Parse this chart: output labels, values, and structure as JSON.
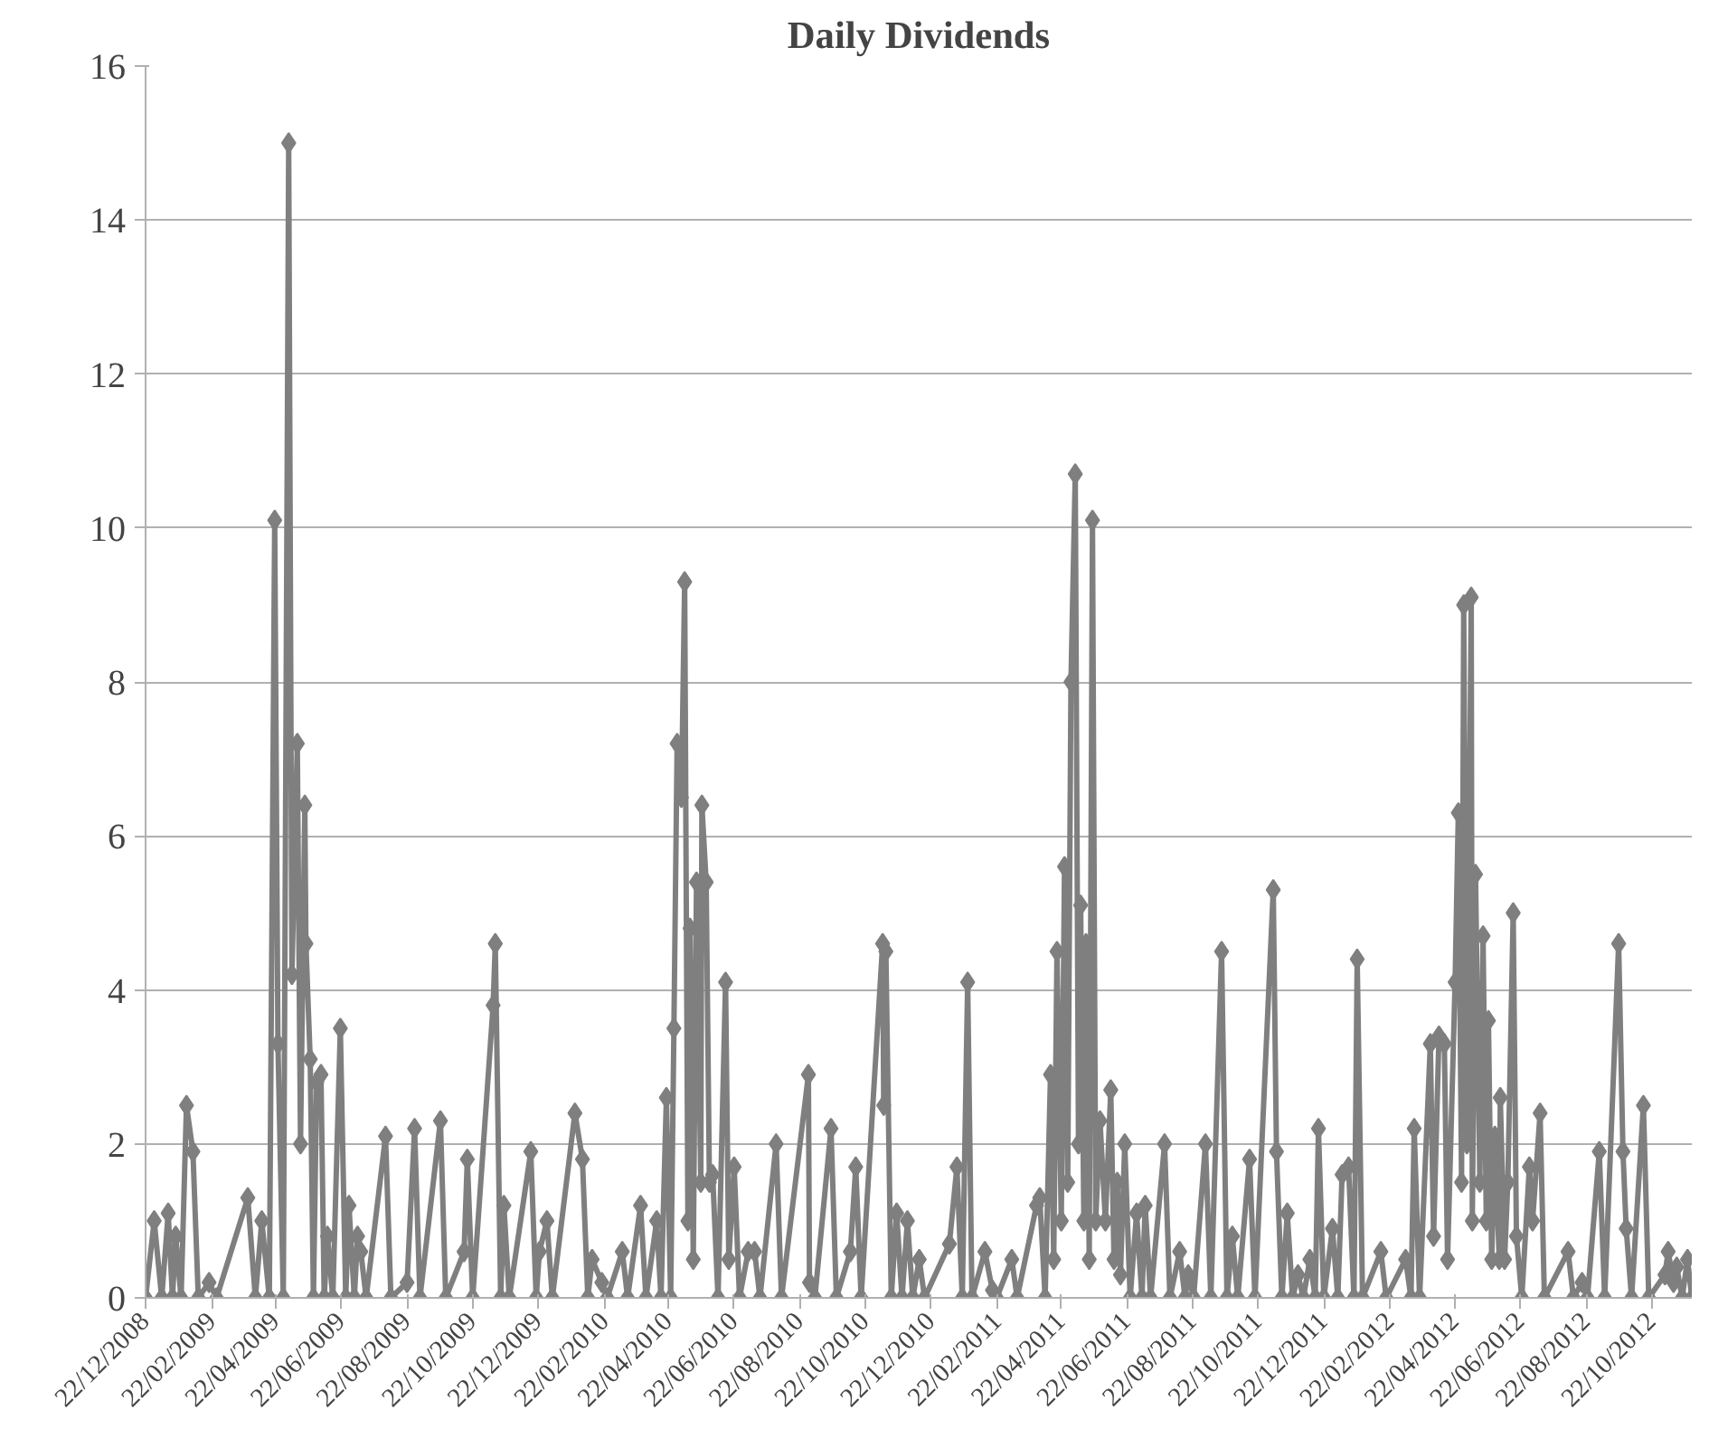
{
  "chart_data": {
    "type": "line",
    "title": "Daily Dividends",
    "color": "#7f7f80",
    "marker": "diamond",
    "line_style": "solid",
    "grid": "y",
    "xlim": [
      "2008-12-22",
      "2012-11-28"
    ],
    "ylim": [
      0,
      16
    ],
    "yticks": [
      0,
      2,
      4,
      6,
      8,
      10,
      12,
      14,
      16
    ],
    "xticks": [
      {
        "value": "2008-12-22",
        "label": "22/12/2008"
      },
      {
        "value": "2009-02-22",
        "label": "22/02/2009"
      },
      {
        "value": "2009-04-22",
        "label": "22/04/2009"
      },
      {
        "value": "2009-06-22",
        "label": "22/06/2009"
      },
      {
        "value": "2009-08-22",
        "label": "22/08/2009"
      },
      {
        "value": "2009-10-22",
        "label": "22/10/2009"
      },
      {
        "value": "2009-12-22",
        "label": "22/12/2009"
      },
      {
        "value": "2010-02-22",
        "label": "22/02/2010"
      },
      {
        "value": "2010-04-22",
        "label": "22/04/2010"
      },
      {
        "value": "2010-06-22",
        "label": "22/06/2010"
      },
      {
        "value": "2010-08-22",
        "label": "22/08/2010"
      },
      {
        "value": "2010-10-22",
        "label": "22/10/2010"
      },
      {
        "value": "2010-12-22",
        "label": "22/12/2010"
      },
      {
        "value": "2011-02-22",
        "label": "22/02/2011"
      },
      {
        "value": "2011-04-22",
        "label": "22/04/2011"
      },
      {
        "value": "2011-06-22",
        "label": "22/06/2011"
      },
      {
        "value": "2011-08-22",
        "label": "22/08/2011"
      },
      {
        "value": "2011-10-22",
        "label": "22/10/2011"
      },
      {
        "value": "2011-12-22",
        "label": "22/12/2011"
      },
      {
        "value": "2012-02-22",
        "label": "22/02/2012"
      },
      {
        "value": "2012-04-22",
        "label": "22/04/2012"
      },
      {
        "value": "2012-06-22",
        "label": "22/06/2012"
      },
      {
        "value": "2012-08-22",
        "label": "22/08/2012"
      },
      {
        "value": "2012-10-22",
        "label": "22/10/2012"
      }
    ],
    "x": [
      "2008-12-22",
      "2008-12-30",
      "2009-01-06",
      "2009-01-12",
      "2009-01-16",
      "2009-01-19",
      "2009-01-24",
      "2009-01-29",
      "2009-02-04",
      "2009-02-09",
      "2009-02-19",
      "2009-02-26",
      "2009-03-27",
      "2009-04-03",
      "2009-04-09",
      "2009-04-16",
      "2009-04-21",
      "2009-04-24",
      "2009-04-29",
      "2009-05-04",
      "2009-05-07",
      "2009-05-12",
      "2009-05-15",
      "2009-05-19",
      "2009-05-20",
      "2009-05-24",
      "2009-05-27",
      "2009-05-30",
      "2009-06-03",
      "2009-06-06",
      "2009-06-09",
      "2009-06-14",
      "2009-06-21",
      "2009-06-26",
      "2009-06-29",
      "2009-07-04",
      "2009-07-07",
      "2009-07-10",
      "2009-07-15",
      "2009-08-02",
      "2009-08-07",
      "2009-08-22",
      "2009-08-29",
      "2009-09-03",
      "2009-09-22",
      "2009-09-27",
      "2009-10-14",
      "2009-10-17",
      "2009-10-22",
      "2009-11-10",
      "2009-11-12",
      "2009-11-17",
      "2009-11-20",
      "2009-11-25",
      "2009-12-15",
      "2009-12-20",
      "2009-12-23",
      "2009-12-30",
      "2010-01-04",
      "2010-01-25",
      "2010-02-01",
      "2010-02-06",
      "2010-02-10",
      "2010-02-19",
      "2010-02-24",
      "2010-03-10",
      "2010-03-15",
      "2010-03-27",
      "2010-04-01",
      "2010-04-11",
      "2010-04-15",
      "2010-04-20",
      "2010-04-24",
      "2010-04-27",
      "2010-04-30",
      "2010-05-04",
      "2010-05-07",
      "2010-05-10",
      "2010-05-12",
      "2010-05-15",
      "2010-05-18",
      "2010-05-22",
      "2010-05-23",
      "2010-05-27",
      "2010-05-30",
      "2010-06-02",
      "2010-06-07",
      "2010-06-14",
      "2010-06-17",
      "2010-06-22",
      "2010-06-27",
      "2010-07-05",
      "2010-07-11",
      "2010-07-16",
      "2010-07-31",
      "2010-08-05",
      "2010-08-30",
      "2010-08-31",
      "2010-09-05",
      "2010-09-20",
      "2010-09-25",
      "2010-10-08",
      "2010-10-13",
      "2010-10-18",
      "2010-11-07",
      "2010-11-08",
      "2010-11-10",
      "2010-11-15",
      "2010-11-20",
      "2010-11-25",
      "2010-11-30",
      "2010-12-05",
      "2010-12-11",
      "2010-12-16",
      "2011-01-08",
      "2011-01-15",
      "2011-01-20",
      "2011-01-25",
      "2011-01-29",
      "2011-02-10",
      "2011-02-17",
      "2011-02-21",
      "2011-03-07",
      "2011-03-12",
      "2011-03-30",
      "2011-04-02",
      "2011-04-07",
      "2011-04-12",
      "2011-04-15",
      "2011-04-18",
      "2011-04-22",
      "2011-04-25",
      "2011-04-28",
      "2011-05-01",
      "2011-05-05",
      "2011-05-08",
      "2011-05-10",
      "2011-05-13",
      "2011-05-15",
      "2011-05-18",
      "2011-05-21",
      "2011-05-24",
      "2011-05-28",
      "2011-06-02",
      "2011-06-07",
      "2011-06-10",
      "2011-06-13",
      "2011-06-16",
      "2011-06-20",
      "2011-06-25",
      "2011-07-01",
      "2011-07-06",
      "2011-07-09",
      "2011-07-14",
      "2011-07-27",
      "2011-08-01",
      "2011-08-10",
      "2011-08-15",
      "2011-08-18",
      "2011-08-23",
      "2011-09-03",
      "2011-09-08",
      "2011-09-18",
      "2011-09-23",
      "2011-09-28",
      "2011-10-03",
      "2011-10-14",
      "2011-10-19",
      "2011-11-05",
      "2011-11-08",
      "2011-11-13",
      "2011-11-18",
      "2011-11-23",
      "2011-11-28",
      "2011-12-03",
      "2011-12-09",
      "2011-12-14",
      "2011-12-17",
      "2011-12-22",
      "2011-12-30",
      "2012-01-04",
      "2012-01-08",
      "2012-01-14",
      "2012-01-19",
      "2012-01-22",
      "2012-01-27",
      "2012-02-13",
      "2012-02-18",
      "2012-03-07",
      "2012-03-12",
      "2012-03-15",
      "2012-03-20",
      "2012-03-30",
      "2012-04-02",
      "2012-04-07",
      "2012-04-12",
      "2012-04-15",
      "2012-04-22",
      "2012-04-25",
      "2012-04-28",
      "2012-04-30",
      "2012-05-03",
      "2012-05-07",
      "2012-05-08",
      "2012-05-11",
      "2012-05-15",
      "2012-05-18",
      "2012-05-21",
      "2012-05-23",
      "2012-05-26",
      "2012-05-29",
      "2012-06-02",
      "2012-06-03",
      "2012-06-07",
      "2012-06-10",
      "2012-06-15",
      "2012-06-18",
      "2012-06-23",
      "2012-06-30",
      "2012-07-03",
      "2012-07-10",
      "2012-07-14",
      "2012-08-05",
      "2012-08-10",
      "2012-08-18",
      "2012-08-23",
      "2012-09-03",
      "2012-09-08",
      "2012-09-21",
      "2012-09-25",
      "2012-09-28",
      "2012-10-03",
      "2012-10-14",
      "2012-10-19",
      "2012-11-03",
      "2012-11-06",
      "2012-11-11",
      "2012-11-14",
      "2012-11-19",
      "2012-11-24",
      "2012-11-28"
    ],
    "values": [
      0,
      1.0,
      0,
      1.1,
      0,
      0.8,
      0,
      2.5,
      1.9,
      0,
      0.2,
      0,
      1.3,
      0,
      1.0,
      0,
      10.1,
      3.3,
      0,
      15.0,
      4.2,
      7.2,
      2.0,
      6.4,
      4.6,
      3.1,
      0,
      2.8,
      2.9,
      0,
      0.8,
      0,
      3.5,
      0,
      1.2,
      0,
      0.8,
      0.6,
      0,
      2.1,
      0,
      0.2,
      2.2,
      0,
      2.3,
      0,
      0.6,
      1.8,
      0,
      3.8,
      4.6,
      0,
      1.2,
      0,
      1.9,
      0,
      0.6,
      1.0,
      0,
      2.4,
      1.8,
      0,
      0.5,
      0.2,
      0,
      0.6,
      0,
      1.2,
      0,
      1.0,
      0,
      2.6,
      0,
      3.5,
      7.2,
      6.5,
      9.3,
      1.0,
      4.8,
      0.5,
      5.4,
      1.5,
      6.4,
      5.4,
      1.5,
      1.6,
      0,
      4.1,
      0.5,
      1.7,
      0,
      0.6,
      0.6,
      0,
      2.0,
      0,
      2.9,
      0.2,
      0,
      2.2,
      0,
      0.6,
      1.7,
      0,
      4.6,
      2.5,
      4.5,
      0,
      1.1,
      0,
      1.0,
      0,
      0.5,
      0,
      0.7,
      1.7,
      0,
      4.1,
      0,
      0.6,
      0.1,
      0,
      0.5,
      0,
      1.2,
      1.3,
      0,
      2.9,
      0.5,
      4.5,
      1.0,
      5.6,
      1.5,
      8.0,
      10.7,
      2.0,
      5.1,
      1.0,
      4.6,
      0.5,
      10.1,
      1.0,
      2.3,
      1.0,
      2.7,
      0.5,
      1.5,
      0.3,
      2.0,
      0,
      1.1,
      0,
      1.2,
      0,
      2.0,
      0,
      0.6,
      0,
      0.3,
      0,
      2.0,
      0,
      4.5,
      0,
      0.8,
      0,
      1.8,
      0,
      5.3,
      1.9,
      0,
      1.1,
      0,
      0.3,
      0,
      0.5,
      0,
      2.2,
      0,
      0.9,
      0,
      1.6,
      1.7,
      0,
      4.4,
      0,
      0.6,
      0,
      0.5,
      0,
      2.2,
      0,
      3.3,
      0.8,
      3.4,
      3.3,
      0.5,
      4.1,
      6.3,
      1.5,
      9.0,
      2.0,
      9.1,
      1.0,
      5.5,
      1.5,
      4.7,
      1.0,
      3.6,
      0.5,
      2.1,
      0.5,
      2.6,
      0.5,
      1.5,
      5.0,
      0.8,
      0,
      1.7,
      1.0,
      2.4,
      0,
      0.6,
      0,
      0.2,
      0,
      1.9,
      0,
      4.6,
      1.9,
      0.9,
      0,
      2.5,
      0,
      0.3,
      0.6,
      0.2,
      0.4,
      0,
      0.5,
      0
    ]
  }
}
